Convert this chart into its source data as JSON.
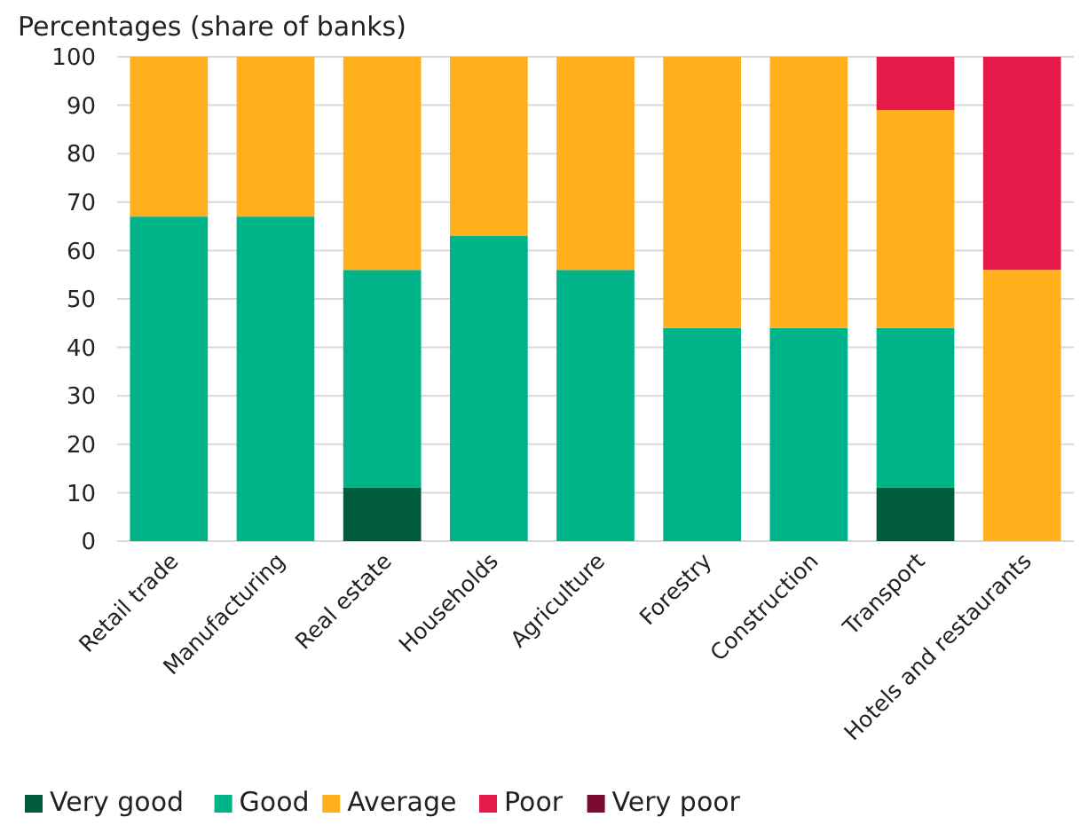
{
  "chart_data": {
    "type": "bar",
    "stacked": true,
    "title": "Percentages (share of banks)",
    "categories": [
      "Retail trade",
      "Manufacturing",
      "Real estate",
      "Households",
      "Agriculture",
      "Forestry",
      "Construction",
      "Transport",
      "Hotels and restaurants"
    ],
    "series": [
      {
        "name": "Very good",
        "color": "#005a3c",
        "values": [
          0,
          0,
          11,
          0,
          0,
          0,
          0,
          11,
          0
        ]
      },
      {
        "name": "Good",
        "color": "#00b388",
        "values": [
          67,
          67,
          45,
          63,
          56,
          44,
          44,
          33,
          0
        ]
      },
      {
        "name": "Average",
        "color": "#ffb01c",
        "values": [
          33,
          33,
          44,
          37,
          44,
          56,
          56,
          45,
          56
        ]
      },
      {
        "name": "Poor",
        "color": "#e6194b",
        "values": [
          0,
          0,
          0,
          0,
          0,
          0,
          0,
          11,
          44
        ]
      },
      {
        "name": "Very poor",
        "color": "#7a0c2e",
        "values": [
          0,
          0,
          0,
          0,
          0,
          0,
          0,
          0,
          0
        ]
      }
    ],
    "ylim": [
      0,
      100
    ],
    "yticks": [
      0,
      10,
      20,
      30,
      40,
      50,
      60,
      70,
      80,
      90,
      100
    ],
    "grid": "y",
    "legend": "bottom"
  }
}
